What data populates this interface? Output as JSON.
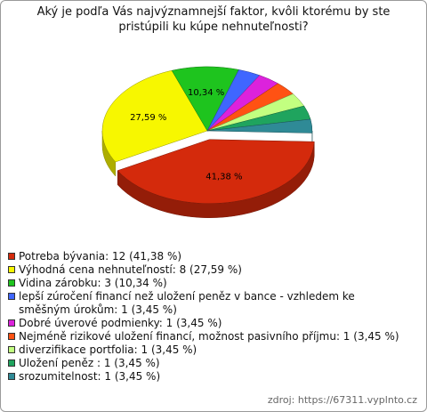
{
  "chart_data": {
    "type": "pie",
    "title": "Aký je podľa Vás najvýznamnejší faktor, kvôli ktorému by ste pristúpili ku kúpe nehnuteľnosti?",
    "categories": [
      "Potreba bývania: 12 (41,38 %)",
      "Výhodná cena nehnuteľností: 8 (27,59 %)",
      "Vidina zárobku: 3 (10,34 %)",
      "lepší zúročení financí než uložení peněz v bance - vzhledem ke směšným úrokům: 1 (3,45 %)",
      "Dobré úverové podmienky: 1 (3,45 %)",
      "Nejméně rizikové uložení financí, možnost pasivního příjmu: 1 (3,45 %)",
      "diverzifikace portfolia: 1 (3,45 %)",
      "Uložení peněz : 1 (3,45 %)",
      "srozumitelnost: 1 (3,45 %)"
    ],
    "values": [
      41.38,
      27.59,
      10.34,
      3.45,
      3.45,
      3.45,
      3.45,
      3.45,
      3.45
    ],
    "value_labels": [
      "41,38 %",
      "27,59 %",
      "10,34 %",
      null,
      null,
      null,
      null,
      null,
      null
    ],
    "colors": [
      "#d42a0c",
      "#f7f700",
      "#1ec41e",
      "#3f66ff",
      "#dc22dc",
      "#ff5213",
      "#c2ff80",
      "#1fa45e",
      "#2f8a96"
    ],
    "source": "zdroj: https://67311.vyplnto.cz"
  }
}
